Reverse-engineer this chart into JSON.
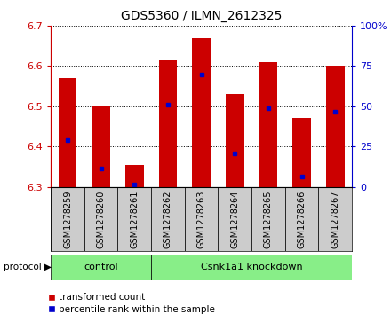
{
  "title": "GDS5360 / ILMN_2612325",
  "samples": [
    "GSM1278259",
    "GSM1278260",
    "GSM1278261",
    "GSM1278262",
    "GSM1278263",
    "GSM1278264",
    "GSM1278265",
    "GSM1278267",
    "GSM1278267"
  ],
  "samples_real": [
    "GSM1278259",
    "GSM1278260",
    "GSM1278261",
    "GSM1278262",
    "GSM1278263",
    "GSM1278264",
    "GSM1278265",
    "GSM1278266",
    "GSM1278267"
  ],
  "bar_tops": [
    6.57,
    6.5,
    6.355,
    6.615,
    6.67,
    6.53,
    6.61,
    6.47,
    6.6
  ],
  "bar_bottom": 6.3,
  "blue_dot_values": [
    6.415,
    6.345,
    6.305,
    6.505,
    6.578,
    6.383,
    6.495,
    6.325,
    6.487
  ],
  "ylim_left": [
    6.3,
    6.7
  ],
  "ylim_right": [
    0,
    100
  ],
  "yticks_left": [
    6.3,
    6.4,
    6.5,
    6.6,
    6.7
  ],
  "yticks_right": [
    0,
    25,
    50,
    75,
    100
  ],
  "ytick_labels_right": [
    "0",
    "25",
    "50",
    "75",
    "100%"
  ],
  "bar_color": "#cc0000",
  "dot_color": "#0000cc",
  "grid_color": "#000000",
  "control_samples": 3,
  "control_label": "control",
  "knockdown_label": "Csnk1a1 knockdown",
  "group_color": "#88ee88",
  "tick_area_color": "#cccccc",
  "left_axis_color": "#cc0000",
  "right_axis_color": "#0000cc",
  "legend_bar_label": "transformed count",
  "legend_dot_label": "percentile rank within the sample",
  "protocol_label": "protocol"
}
